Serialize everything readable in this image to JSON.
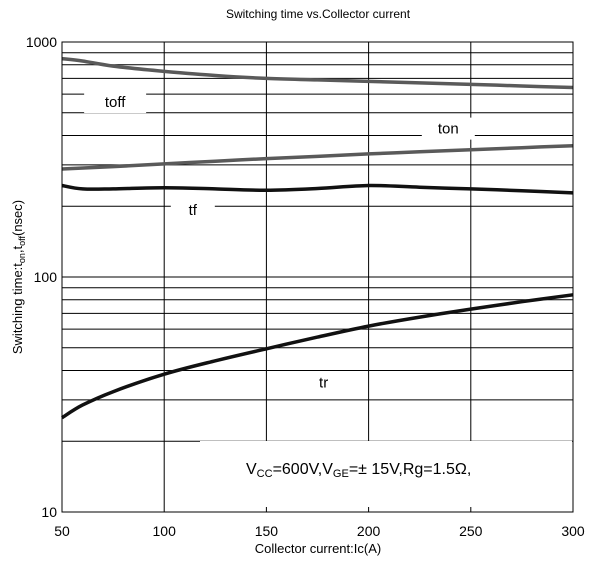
{
  "chart_data": {
    "type": "line",
    "title": "Switching time vs.Collector current",
    "xlabel": "Collector current:Ic(A)",
    "ylabel": {
      "prefix": "Switching time:t",
      "sub1": "on",
      "mid": ",t",
      "sub2": "off",
      "suffix": "(nsec)"
    },
    "xlim": [
      50,
      300
    ],
    "ylim": [
      10,
      1000
    ],
    "y_scale": "log",
    "grid": true,
    "x_ticks": [
      50,
      100,
      150,
      200,
      250,
      300
    ],
    "y_ticks": [
      {
        "value": 10,
        "label": "10"
      },
      {
        "value": 100,
        "label": "100"
      },
      {
        "value": 1000,
        "label": "1000"
      }
    ],
    "series": [
      {
        "name": "toff",
        "color": "#5a5a5a",
        "x": [
          50,
          60,
          75,
          100,
          125,
          150,
          175,
          200,
          225,
          250,
          275,
          300
        ],
        "y": [
          850,
          830,
          790,
          750,
          720,
          700,
          690,
          680,
          670,
          660,
          650,
          640
        ]
      },
      {
        "name": "ton",
        "color": "#5a5a5a",
        "x": [
          50,
          75,
          100,
          125,
          150,
          175,
          200,
          225,
          250,
          275,
          300
        ],
        "y": [
          288,
          295,
          303,
          311,
          319,
          326,
          334,
          341,
          348,
          355,
          362
        ]
      },
      {
        "name": "tf",
        "color": "#111111",
        "x": [
          50,
          60,
          75,
          100,
          125,
          150,
          175,
          200,
          225,
          250,
          275,
          300
        ],
        "y": [
          245,
          237,
          237,
          240,
          237,
          234,
          238,
          245,
          241,
          237,
          233,
          228
        ]
      },
      {
        "name": "tr",
        "color": "#111111",
        "x": [
          50,
          60,
          75,
          100,
          125,
          150,
          175,
          200,
          225,
          250,
          275,
          300
        ],
        "y": [
          25.2,
          28.5,
          32.5,
          38.6,
          44,
          49.5,
          55.5,
          61.8,
          67.5,
          73,
          78.5,
          84
        ]
      }
    ],
    "annotations": [
      {
        "text": "toff",
        "x": 76,
        "y": 555
      },
      {
        "text": "ton",
        "x": 239,
        "y": 428
      },
      {
        "text": "tf",
        "x": 114,
        "y": 193
      },
      {
        "text": "tr",
        "x": 178,
        "y": 35.5
      }
    ],
    "condition": {
      "v": "V",
      "cc": "CC",
      "mid1": "=600V,V",
      "ge": "GE",
      "mid2": "=± 15V,Rg=1.5Ω,"
    },
    "colors": {
      "grid": "#000000",
      "frame": "#000000"
    }
  }
}
